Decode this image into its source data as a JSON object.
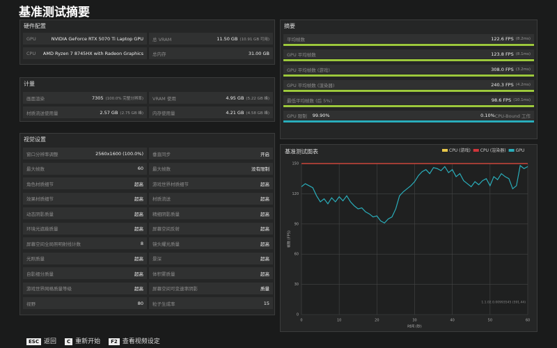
{
  "title": "基准测试摘要",
  "hardware": {
    "heading": "硬件配置",
    "rows": [
      [
        {
          "label": "GPU",
          "value": "NVIDIA GeForce RTX 5070 Ti Laptop GPU"
        },
        {
          "label": "总 VRAM",
          "value": "11.50 GB",
          "note": "(10.91 GB 可用)"
        }
      ],
      [
        {
          "label": "CPU",
          "value": "AMD Ryzen 7 8745HX with Radeon Graphics"
        },
        {
          "label": "总内存",
          "value": "31.00 GB"
        }
      ]
    ]
  },
  "metrics": {
    "heading": "计量",
    "rows": [
      [
        {
          "label": "画面渲染",
          "value": "7305",
          "note": "(100.0% 完整分辨率)"
        },
        {
          "label": "VRAM 使用",
          "value": "4.95 GB",
          "note": "(5.22 GB 峰)"
        }
      ],
      [
        {
          "label": "材质流送使用量",
          "value": "2.57 GB",
          "note": "(2.75 GB 峰)"
        },
        {
          "label": "内存使用量",
          "value": "4.21 GB",
          "note": "(4.58 GB 峰)"
        }
      ]
    ]
  },
  "video": {
    "heading": "视觉设置",
    "rows": [
      [
        {
          "label": "窗口分辨率调整",
          "value": "2560x1600 (100.0%)"
        },
        {
          "label": "垂直同步",
          "value": "开启"
        }
      ],
      [
        {
          "label": "最大帧数",
          "value": "60"
        },
        {
          "label": "最大帧数",
          "value": "没有限制"
        }
      ],
      [
        {
          "label": "角色材质细节",
          "value": "超高"
        },
        {
          "label": "游戏世界材质细节",
          "value": "超高"
        }
      ],
      [
        {
          "label": "效果材质细节",
          "value": "超高"
        },
        {
          "label": "材质流送",
          "value": "超高"
        }
      ],
      [
        {
          "label": "动态阴影质量",
          "value": "超高"
        },
        {
          "label": "精细阴影质量",
          "value": "超高"
        }
      ],
      [
        {
          "label": "环境光遮蔽质量",
          "value": "超高"
        },
        {
          "label": "屏幕空间反射",
          "value": "超高"
        }
      ],
      [
        {
          "label": "屏幕空间全局照明射线计数",
          "value": "8"
        },
        {
          "label": "镜头耀光质量",
          "value": "超高"
        }
      ],
      [
        {
          "label": "光照质量",
          "value": "超高"
        },
        {
          "label": "景深",
          "value": "超高"
        }
      ],
      [
        {
          "label": "自影细分质量",
          "value": "超高"
        },
        {
          "label": "体积雾质量",
          "value": "超高"
        }
      ],
      [
        {
          "label": "游戏世界网格质量等级",
          "value": "超高"
        },
        {
          "label": "屏幕空间可变速率阴影",
          "value": "质量"
        }
      ],
      [
        {
          "label": "视野",
          "value": "80"
        },
        {
          "label": "粒子生成率",
          "value": "15"
        }
      ]
    ]
  },
  "summary": {
    "heading": "摘要",
    "items": [
      {
        "label": "平均帧数",
        "value": "122.6 FPS",
        "note": "(8.2ms)"
      },
      {
        "label": "GPU 平均帧数",
        "value": "123.8 FPS",
        "note": "(8.1ms)"
      },
      {
        "label": "GPU 平均帧数 (游戏)",
        "value": "308.0 FPS",
        "note": "(3.2ms)"
      },
      {
        "label": "GPU 平均帧数 (渲染器)",
        "value": "240.3 FPS",
        "note": "(4.2ms)"
      },
      {
        "label": "最低平均帧数 (后 5%)",
        "value": "98.6 FPS",
        "note": "(10.1ms)"
      }
    ],
    "limit": {
      "label": "GPU 限制",
      "value": "99.90%",
      "right_value": "0.10%",
      "right_label": "CPU-Bound 工作"
    }
  },
  "chart_data": {
    "type": "line",
    "title": "基准测试图表",
    "x_label": "时间 (秒)",
    "y_label": "帧数 (FPS)",
    "annotation": "1.1.02.0.00993545 (591.44)",
    "x": [
      0,
      1,
      2,
      3,
      4,
      5,
      6,
      7,
      8,
      9,
      10,
      11,
      12,
      13,
      14,
      15,
      16,
      17,
      18,
      19,
      20,
      21,
      22,
      23,
      24,
      25,
      26,
      27,
      28,
      29,
      30,
      31,
      32,
      33,
      34,
      35,
      36,
      37,
      38,
      39,
      40,
      41,
      42,
      43,
      44,
      45,
      46,
      47,
      48,
      49,
      50,
      51,
      52,
      53,
      54,
      55,
      56,
      57,
      58,
      59,
      60
    ],
    "series": [
      {
        "name": "CPU (游戏)",
        "color": "#e8c84a",
        "values": [
          150,
          150,
          150,
          150,
          150,
          150,
          150,
          150,
          150,
          150,
          150,
          150,
          150,
          150,
          150,
          150,
          150,
          150,
          150,
          150,
          150,
          150,
          150,
          150,
          150,
          150,
          150,
          150,
          150,
          150,
          150,
          150,
          150,
          150,
          150,
          150,
          150,
          150,
          150,
          150,
          150,
          150,
          150,
          150,
          150,
          150,
          150,
          150,
          150,
          150,
          150,
          150,
          150,
          150,
          150,
          150,
          150,
          150,
          150,
          150,
          150
        ]
      },
      {
        "name": "CPU (渲染器)",
        "color": "#d0353a",
        "values": [
          150,
          150,
          150,
          150,
          150,
          150,
          150,
          150,
          150,
          150,
          150,
          150,
          150,
          150,
          150,
          150,
          150,
          150,
          150,
          150,
          150,
          150,
          150,
          150,
          150,
          150,
          150,
          150,
          150,
          150,
          150,
          150,
          150,
          150,
          150,
          150,
          150,
          150,
          150,
          150,
          150,
          150,
          150,
          150,
          150,
          150,
          150,
          150,
          150,
          150,
          150,
          150,
          150,
          150,
          150,
          150,
          150,
          150,
          150,
          150,
          150
        ]
      },
      {
        "name": "GPU",
        "color": "#2aaebb",
        "values": [
          127,
          130,
          128,
          126,
          118,
          112,
          115,
          110,
          116,
          112,
          117,
          113,
          118,
          112,
          108,
          105,
          106,
          102,
          100,
          97,
          98,
          93,
          91,
          95,
          97,
          105,
          118,
          122,
          125,
          128,
          132,
          138,
          142,
          144,
          140,
          146,
          145,
          143,
          147,
          141,
          144,
          137,
          140,
          133,
          130,
          127,
          132,
          129,
          133,
          135,
          128,
          137,
          134,
          140,
          137,
          135,
          125,
          128,
          148,
          145,
          147
        ]
      }
    ],
    "xlim": [
      0,
      60
    ],
    "xticks": [
      0,
      10,
      20,
      30,
      40,
      50,
      60
    ],
    "ylim": [
      0,
      150
    ],
    "yticks": [
      0,
      30,
      60,
      90,
      120,
      150
    ],
    "grid": true
  },
  "footer": [
    {
      "key": "ESC",
      "action": "返回"
    },
    {
      "key": "C",
      "action": "重新开始"
    },
    {
      "key": "F2",
      "action": "查看视频设定"
    }
  ]
}
